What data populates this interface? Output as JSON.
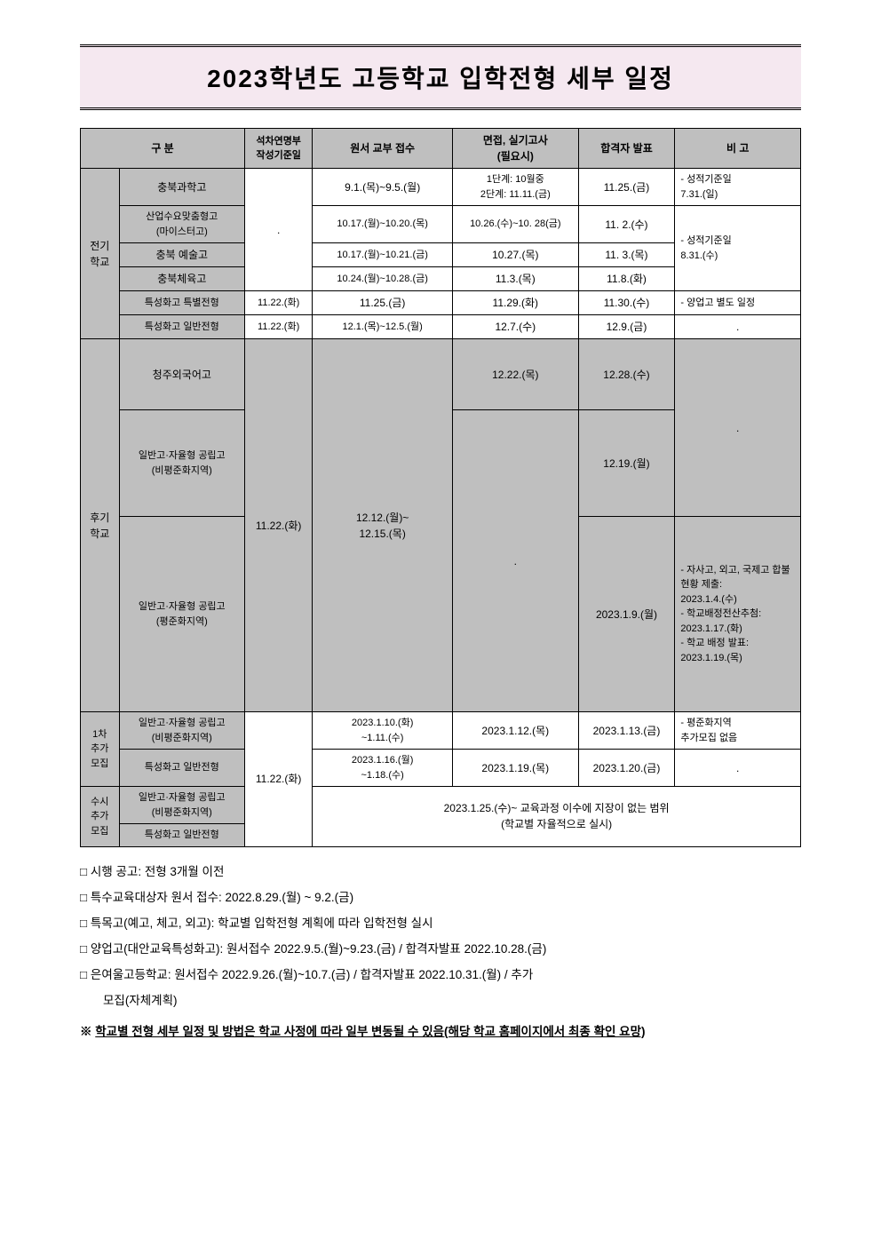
{
  "title": "2023학년도 고등학교 입학전형 세부 일정",
  "colors": {
    "title_bg": "#f5e8f0",
    "header_bg": "#bfbfbf",
    "border": "#000000"
  },
  "headers": {
    "category": "구 분",
    "ref_date": "석차연명부\n작성기준일",
    "application": "원서 교부 접수",
    "interview": "면접, 실기고사\n(필요시)",
    "announce": "합격자 발표",
    "note": "비 고"
  },
  "groups": {
    "early": "전기\n학교",
    "late": "후기\n학교",
    "r1": "1차\n추가\n모집",
    "rolling": "수시\n추가\n모집"
  },
  "rows": {
    "r1": {
      "school": "충북과학고",
      "ref": "",
      "app": "9.1.(목)~9.5.(월)",
      "int": "1단계: 10월중\n2단계: 11.11.(금)",
      "ann": "11.25.(금)",
      "note": "- 성적기준일\n7.31.(일)"
    },
    "r2": {
      "school": "산업수요맞춤형고\n(마이스터고)",
      "ref": ".",
      "app": "10.17.(월)~10.20.(목)",
      "int": "10.26.(수)~10. 28(금)",
      "ann": "11. 2.(수)",
      "note": "- 성적기준일\n8.31.(수)"
    },
    "r3": {
      "school": "충북 예술고",
      "app": "10.17.(월)~10.21.(금)",
      "int": "10.27.(목)",
      "ann": "11. 3.(목)"
    },
    "r4": {
      "school": "충북체육고",
      "app": "10.24.(월)~10.28.(금)",
      "int": "11.3.(목)",
      "ann": "11.8.(화)"
    },
    "r5": {
      "school": "특성화고 특별전형",
      "ref": "11.22.(화)",
      "app": "11.25.(금)",
      "int": "11.29.(화)",
      "ann": "11.30.(수)",
      "note": "- 양업고 별도 일정"
    },
    "r6": {
      "school": "특성화고 일반전형",
      "ref": "11.22.(화)",
      "app": "12.1.(목)~12.5.(월)",
      "int": "12.7.(수)",
      "ann": "12.9.(금)",
      "note": "."
    },
    "r7": {
      "school": "청주외국어고",
      "ref": "11.22.(화)",
      "app": "12.12.(월)~\n12.15.(목)",
      "int": "12.22.(목)",
      "ann": "12.28.(수)",
      "note": "."
    },
    "r8": {
      "school": "일반고·자율형 공립고\n(비평준화지역)",
      "int": "",
      "ann": "12.19.(월)"
    },
    "r9": {
      "school": "일반고·자율형 공립고\n(평준화지역)",
      "int": ".",
      "ann": "2023.1.9.(월)",
      "note": "- 자사고, 외고, 국제고 합불현황 제출:\n2023.1.4.(수)\n- 학교배정전산추첨:\n2023.1.17.(화)\n- 학교 배정 발표:\n2023.1.19.(목)"
    },
    "r10": {
      "school": "일반고·자율형 공립고\n(비평준화지역)",
      "ref": "11.22.(화)",
      "app": "2023.1.10.(화)\n~1.11.(수)",
      "int": "2023.1.12.(목)",
      "ann": "2023.1.13.(금)",
      "note": "- 평준화지역\n추가모집 없음"
    },
    "r11": {
      "school": "특성화고 일반전형",
      "app": "2023.1.16.(월)\n~1.18.(수)",
      "int": "2023.1.19.(목)",
      "ann": "2023.1.20.(금)",
      "note": "."
    },
    "r12": {
      "school": "일반고·자율형 공립고\n(비평준화지역)",
      "merged": "2023.1.25.(수)~ 교육과정 이수에 지장이 없는 범위\n(학교별 자율적으로 실시)"
    },
    "r13": {
      "school": "특성화고 일반전형"
    }
  },
  "notes": [
    "□ 시행 공고: 전형 3개월 이전",
    "□ 특수교육대상자 원서 접수: 2022.8.29.(월) ~ 9.2.(금)",
    "□ 특목고(예고, 체고, 외고): 학교별 입학전형 계획에 따라 입학전형 실시",
    "□ 양업고(대안교육특성화고): 원서접수 2022.9.5.(월)~9.23.(금) / 합격자발표 2022.10.28.(금)",
    "□ 은여울고등학교: 원서접수 2022.9.26.(월)~10.7.(금) / 합격자발표  2022.10.31.(월) / 추가",
    "모집(자체계획)"
  ],
  "warning_prefix": "※  ",
  "warning": "학교별 전형 세부 일정 및 방법은 학교 사정에 따라 일부 변동될 수 있음(해당 학교 홈페이지에서 최종 확인 요망)"
}
